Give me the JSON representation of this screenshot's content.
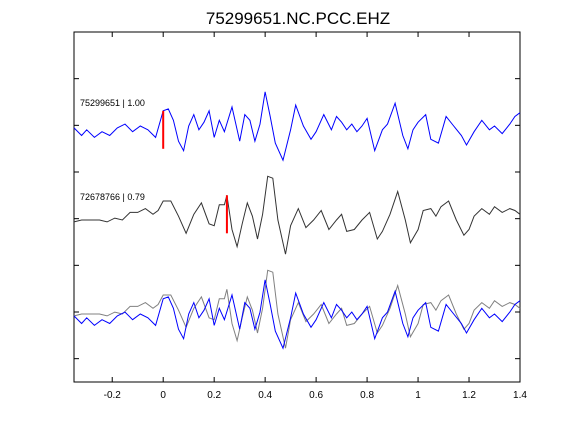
{
  "chart_data": {
    "type": "line",
    "title": "75299651.NC.PCC.EHZ",
    "xlabel": "",
    "ylabel": "",
    "xlim": [
      -0.35,
      1.4
    ],
    "x_ticks": [
      -0.2,
      0,
      0.2,
      0.4,
      0.6,
      0.8,
      1,
      1.2,
      1.4
    ],
    "x_tick_labels": [
      "-0.2",
      "0",
      "0.2",
      "0.4",
      "0.6",
      "0.8",
      "1",
      "1.2",
      "1.4"
    ],
    "grid": false,
    "legend": "none",
    "traces": [
      {
        "label": "75299651 | 1.00",
        "color": "#0000ff",
        "pick_time": 0.0,
        "pick_color": "#ff0000",
        "points": [
          [
            -0.35,
            -0.1
          ],
          [
            -0.32,
            -0.5
          ],
          [
            -0.3,
            -0.2
          ],
          [
            -0.27,
            -0.6
          ],
          [
            -0.24,
            -0.3
          ],
          [
            -0.21,
            -0.5
          ],
          [
            -0.18,
            -0.1
          ],
          [
            -0.15,
            0.1
          ],
          [
            -0.12,
            -0.3
          ],
          [
            -0.09,
            0.0
          ],
          [
            -0.06,
            -0.2
          ],
          [
            -0.03,
            -0.6
          ],
          [
            0.0,
            0.8
          ],
          [
            0.02,
            0.9
          ],
          [
            0.04,
            0.3
          ],
          [
            0.06,
            -0.8
          ],
          [
            0.08,
            -1.3
          ],
          [
            0.1,
            0.0
          ],
          [
            0.12,
            0.6
          ],
          [
            0.14,
            -0.2
          ],
          [
            0.16,
            0.2
          ],
          [
            0.18,
            0.8
          ],
          [
            0.2,
            -0.6
          ],
          [
            0.22,
            0.3
          ],
          [
            0.24,
            -0.3
          ],
          [
            0.27,
            1.0
          ],
          [
            0.3,
            -0.8
          ],
          [
            0.32,
            0.6
          ],
          [
            0.34,
            0.3
          ],
          [
            0.36,
            -0.8
          ],
          [
            0.38,
            0.1
          ],
          [
            0.4,
            1.8
          ],
          [
            0.42,
            0.5
          ],
          [
            0.44,
            -0.9
          ],
          [
            0.47,
            -1.8
          ],
          [
            0.5,
            -0.2
          ],
          [
            0.52,
            1.1
          ],
          [
            0.55,
            0.0
          ],
          [
            0.58,
            -0.7
          ],
          [
            0.6,
            -0.3
          ],
          [
            0.63,
            0.6
          ],
          [
            0.66,
            -0.2
          ],
          [
            0.68,
            0.5
          ],
          [
            0.7,
            0.2
          ],
          [
            0.72,
            -0.2
          ],
          [
            0.74,
            0.1
          ],
          [
            0.76,
            -0.3
          ],
          [
            0.78,
            0.0
          ],
          [
            0.8,
            0.4
          ],
          [
            0.83,
            -1.3
          ],
          [
            0.86,
            -0.2
          ],
          [
            0.88,
            0.1
          ],
          [
            0.91,
            1.2
          ],
          [
            0.94,
            -0.5
          ],
          [
            0.96,
            -1.2
          ],
          [
            0.98,
            -0.2
          ],
          [
            1.0,
            0.2
          ],
          [
            1.03,
            0.6
          ],
          [
            1.05,
            -0.7
          ],
          [
            1.08,
            -0.9
          ],
          [
            1.11,
            0.5
          ],
          [
            1.14,
            0.0
          ],
          [
            1.17,
            -0.5
          ],
          [
            1.19,
            -1.0
          ],
          [
            1.22,
            -0.3
          ],
          [
            1.25,
            0.3
          ],
          [
            1.28,
            -0.2
          ],
          [
            1.3,
            0.0
          ],
          [
            1.33,
            -0.4
          ],
          [
            1.36,
            0.1
          ],
          [
            1.38,
            0.5
          ],
          [
            1.4,
            0.7
          ]
        ]
      },
      {
        "label": "72678766 | 0.79",
        "color": "#333333",
        "pick_time": 0.25,
        "pick_color": "#ff0000",
        "points": [
          [
            -0.35,
            -0.1
          ],
          [
            -0.32,
            0.0
          ],
          [
            -0.28,
            0.0
          ],
          [
            -0.25,
            0.0
          ],
          [
            -0.22,
            -0.1
          ],
          [
            -0.19,
            0.1
          ],
          [
            -0.16,
            0.0
          ],
          [
            -0.13,
            0.4
          ],
          [
            -0.1,
            0.4
          ],
          [
            -0.07,
            0.6
          ],
          [
            -0.04,
            0.3
          ],
          [
            -0.02,
            0.5
          ],
          [
            0.0,
            1.0
          ],
          [
            0.03,
            1.0
          ],
          [
            0.06,
            0.2
          ],
          [
            0.09,
            -0.7
          ],
          [
            0.12,
            0.3
          ],
          [
            0.15,
            0.9
          ],
          [
            0.18,
            -0.2
          ],
          [
            0.2,
            -0.3
          ],
          [
            0.22,
            0.8
          ],
          [
            0.24,
            0.8
          ],
          [
            0.25,
            1.3
          ],
          [
            0.27,
            -0.5
          ],
          [
            0.29,
            -1.4
          ],
          [
            0.31,
            -0.2
          ],
          [
            0.33,
            0.9
          ],
          [
            0.35,
            0.2
          ],
          [
            0.37,
            -1.0
          ],
          [
            0.39,
            0.3
          ],
          [
            0.41,
            2.3
          ],
          [
            0.43,
            2.2
          ],
          [
            0.45,
            0.0
          ],
          [
            0.48,
            -1.8
          ],
          [
            0.5,
            -0.3
          ],
          [
            0.53,
            0.6
          ],
          [
            0.56,
            -0.4
          ],
          [
            0.59,
            0.0
          ],
          [
            0.62,
            0.5
          ],
          [
            0.65,
            -0.5
          ],
          [
            0.68,
            0.0
          ],
          [
            0.7,
            0.3
          ],
          [
            0.72,
            -0.6
          ],
          [
            0.75,
            -0.5
          ],
          [
            0.78,
            0.0
          ],
          [
            0.81,
            0.4
          ],
          [
            0.84,
            -1.0
          ],
          [
            0.86,
            -0.6
          ],
          [
            0.89,
            0.3
          ],
          [
            0.92,
            1.5
          ],
          [
            0.95,
            0.0
          ],
          [
            0.97,
            -1.2
          ],
          [
            1.0,
            -0.5
          ],
          [
            1.02,
            0.5
          ],
          [
            1.05,
            0.6
          ],
          [
            1.07,
            0.2
          ],
          [
            1.09,
            0.7
          ],
          [
            1.12,
            1.0
          ],
          [
            1.15,
            0.0
          ],
          [
            1.18,
            -0.8
          ],
          [
            1.2,
            -0.5
          ],
          [
            1.22,
            0.2
          ],
          [
            1.25,
            0.6
          ],
          [
            1.28,
            0.3
          ],
          [
            1.3,
            0.7
          ],
          [
            1.33,
            0.4
          ],
          [
            1.36,
            0.6
          ],
          [
            1.38,
            0.5
          ],
          [
            1.4,
            0.3
          ]
        ]
      }
    ]
  }
}
